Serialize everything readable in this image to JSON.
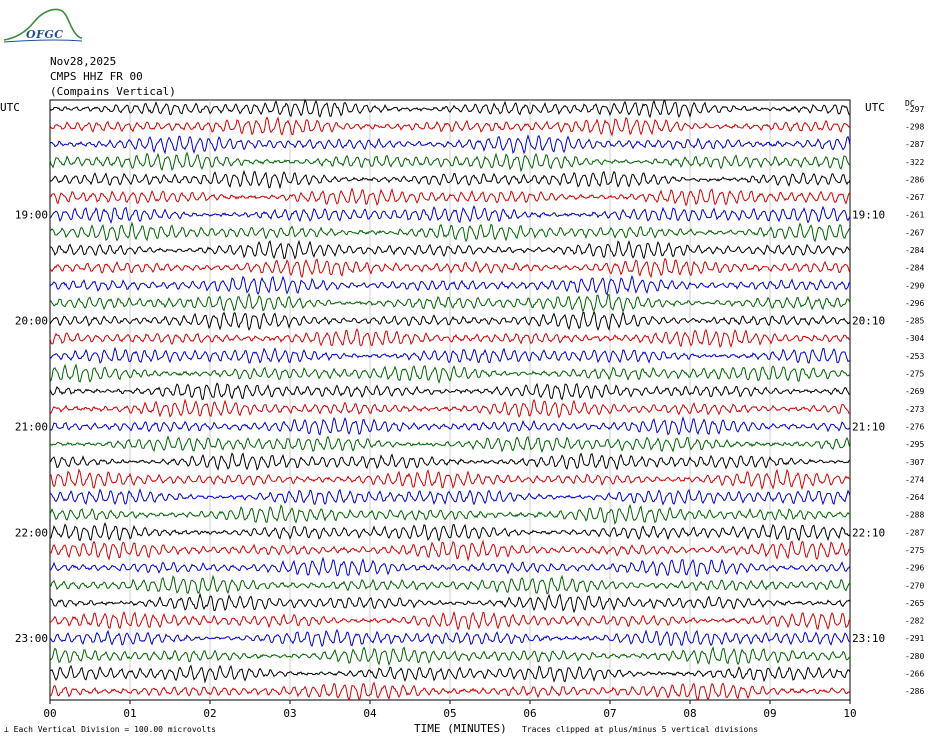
{
  "header": {
    "logo_text": "OFGC",
    "date": "Nov28,2025",
    "station": "CMPS HHZ FR 00",
    "location": "(Compains Vertical)"
  },
  "footer": {
    "scale_note": "Each Vertical Division =  100.00 microvolts",
    "clip_note": "Traces clipped at plus/minus 5 vertical divisions"
  },
  "chart_data": {
    "type": "line",
    "title": "",
    "xlabel": "TIME (MINUTES)",
    "ylabel": "",
    "x_ticks": [
      "00",
      "01",
      "02",
      "03",
      "04",
      "05",
      "06",
      "07",
      "08",
      "09",
      "10"
    ],
    "xlim": [
      0,
      10
    ],
    "left_axis_label": "UTC",
    "right_axis_label": "UTC",
    "dc_label": "DC",
    "left_time_labels": [
      {
        "row": 6,
        "label": "19:00"
      },
      {
        "row": 12,
        "label": "20:00"
      },
      {
        "row": 18,
        "label": "21:00"
      },
      {
        "row": 24,
        "label": "22:00"
      },
      {
        "row": 30,
        "label": "23:00"
      }
    ],
    "right_time_labels": [
      {
        "row": 6,
        "label": "19:10"
      },
      {
        "row": 12,
        "label": "20:10"
      },
      {
        "row": 18,
        "label": "21:10"
      },
      {
        "row": 24,
        "label": "22:10"
      },
      {
        "row": 30,
        "label": "23:10"
      }
    ],
    "trace_colors": [
      "#000000",
      "#d40000",
      "#0000d4",
      "#006400"
    ],
    "dc_offsets": [
      -297,
      -298,
      -287,
      -322,
      -286,
      -267,
      -261,
      -267,
      -284,
      -284,
      -290,
      -296,
      -285,
      -304,
      -253,
      -275,
      -269,
      -273,
      -276,
      -295,
      -307,
      -274,
      -264,
      -288,
      -287,
      -275,
      -296,
      -270,
      -265,
      -282,
      -291,
      -280,
      -266,
      -286
    ]
  }
}
